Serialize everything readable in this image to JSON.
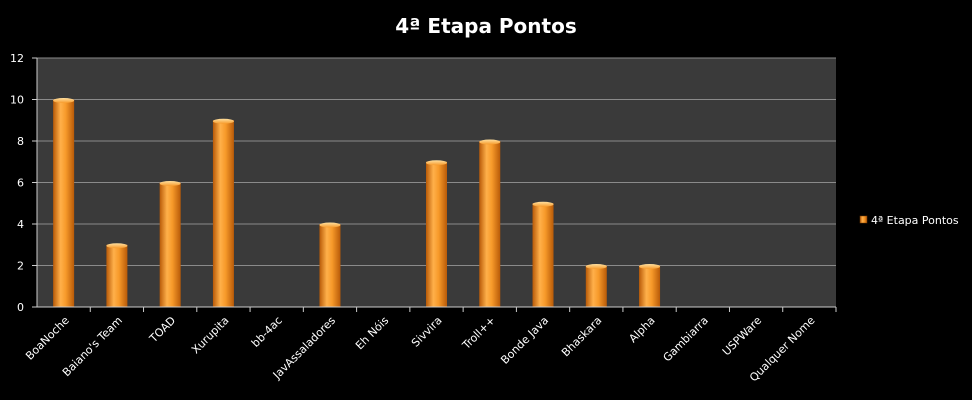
{
  "chart_data": {
    "type": "bar",
    "title": "4ª Etapa Pontos",
    "categories": [
      "BoaNoche",
      "Baiano's Team",
      "TOAD",
      "Xurupita",
      "bb-4ac",
      "JavAssaladores",
      "Eh Nóis",
      "Sivvira",
      "Troll++",
      "Bonde Java",
      "Bhaskara",
      "Alpha",
      "Gambiarra",
      "USPWare",
      "Qualquer Nome"
    ],
    "series": [
      {
        "name": "4ª Etapa Pontos",
        "values": [
          10,
          3,
          6,
          9,
          0,
          4,
          0,
          7,
          8,
          5,
          2,
          2,
          0,
          0,
          0
        ]
      }
    ],
    "ylim": [
      0,
      12
    ],
    "yticks": [
      "0",
      "2",
      "4",
      "6",
      "8",
      "10",
      "12"
    ],
    "grid": true,
    "legend_position": "right",
    "colors": {
      "background": "#000000",
      "plot_area": "#3a3a3a",
      "grid": "#8a8a8a",
      "bar_light": "#ffc26a",
      "bar_mid": "#f28a1c",
      "bar_dark": "#b85a08",
      "text": "#ffffff"
    }
  }
}
